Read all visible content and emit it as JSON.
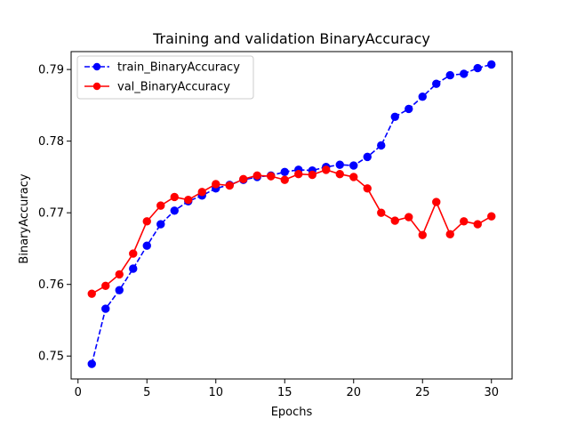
{
  "chart_data": {
    "type": "line",
    "title": "Training and validation BinaryAccuracy",
    "xlabel": "Epochs",
    "ylabel": "BinaryAccuracy",
    "xlim": [
      -0.5,
      31.5
    ],
    "ylim": [
      0.7468,
      0.7925
    ],
    "x_ticks": [
      0,
      5,
      10,
      15,
      20,
      25,
      30
    ],
    "y_ticks": [
      0.75,
      0.76,
      0.77,
      0.78,
      0.79
    ],
    "x": [
      1,
      2,
      3,
      4,
      5,
      6,
      7,
      8,
      9,
      10,
      11,
      12,
      13,
      14,
      15,
      16,
      17,
      18,
      19,
      20,
      21,
      22,
      23,
      24,
      25,
      26,
      27,
      28,
      29,
      30
    ],
    "grid": false,
    "legend_position": "top-left",
    "series": [
      {
        "name": "train_BinaryAccuracy",
        "color": "#0000ff",
        "line_style": "dashed",
        "marker": "circle",
        "values": [
          0.7489,
          0.7566,
          0.7592,
          0.7622,
          0.7654,
          0.7684,
          0.7703,
          0.7716,
          0.7724,
          0.7734,
          0.7739,
          0.7746,
          0.775,
          0.7752,
          0.7757,
          0.776,
          0.7759,
          0.7764,
          0.7767,
          0.7766,
          0.7778,
          0.7794,
          0.7834,
          0.7845,
          0.7862,
          0.788,
          0.7892,
          0.7894,
          0.7902,
          0.7907
        ]
      },
      {
        "name": "val_BinaryAccuracy",
        "color": "#ff0000",
        "line_style": "solid",
        "marker": "circle",
        "values": [
          0.7587,
          0.7598,
          0.7614,
          0.7643,
          0.7688,
          0.771,
          0.7722,
          0.7718,
          0.7729,
          0.774,
          0.7738,
          0.7747,
          0.7752,
          0.7751,
          0.7746,
          0.7754,
          0.7753,
          0.776,
          0.7754,
          0.775,
          0.7734,
          0.77,
          0.7689,
          0.7694,
          0.7669,
          0.7715,
          0.767,
          0.7688,
          0.7684,
          0.7695
        ]
      }
    ]
  }
}
